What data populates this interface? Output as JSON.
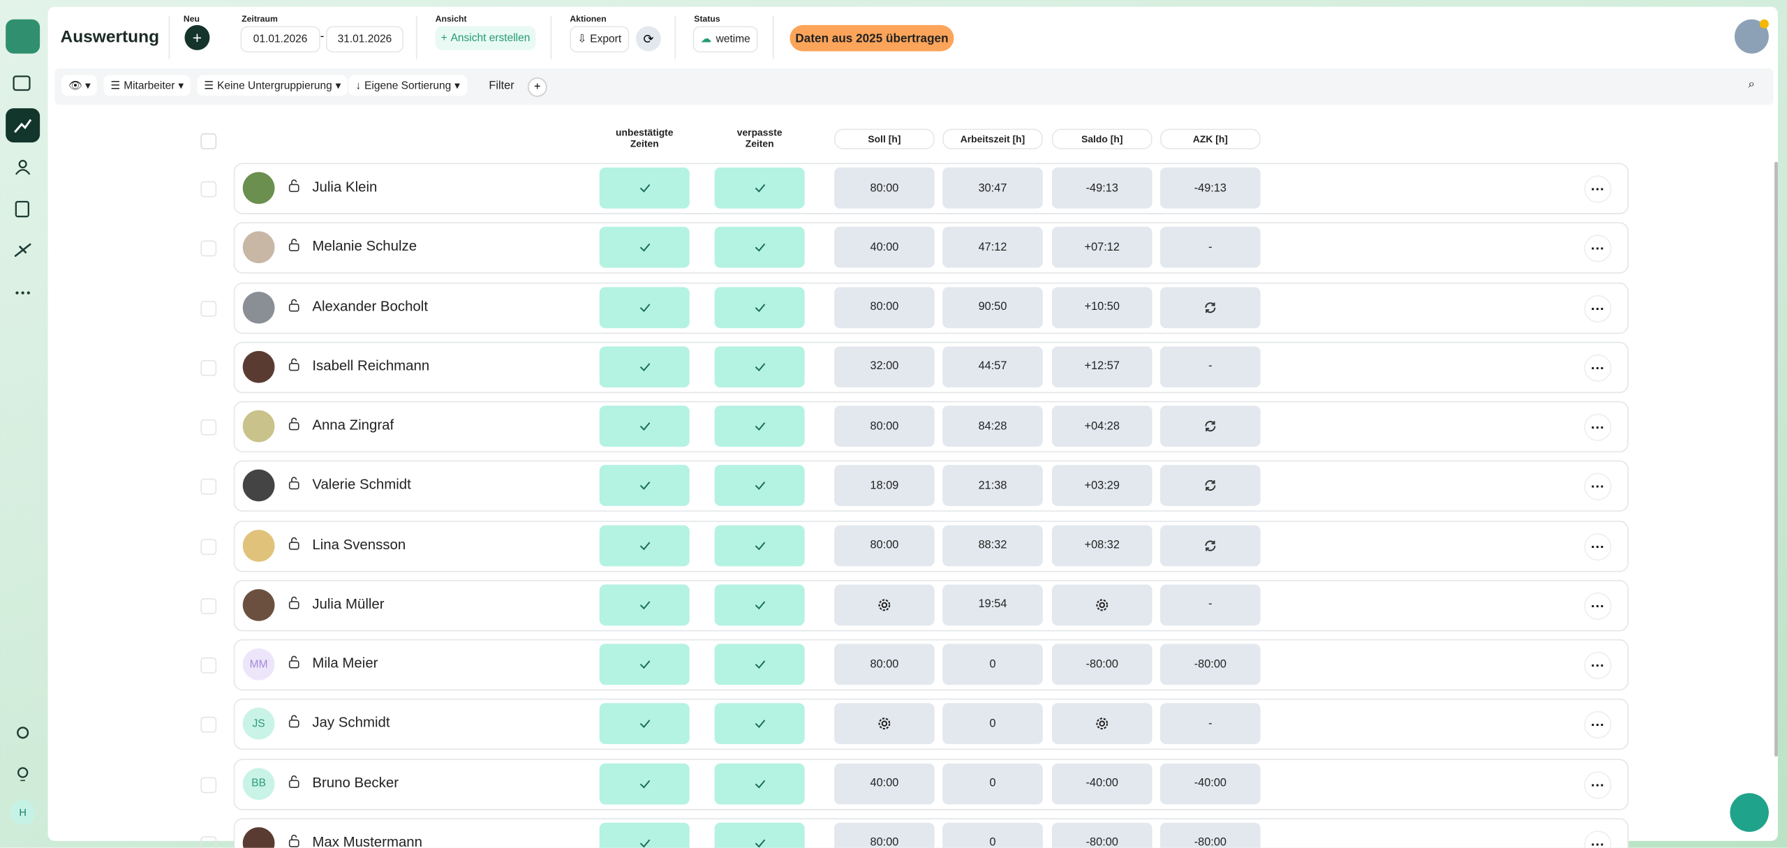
{
  "header": {
    "title": "Auswertung",
    "new_label": "Neu",
    "period_label": "Zeitraum",
    "date_from": "01.01.2026",
    "date_sep": "-",
    "date_to": "31.01.2026",
    "view_label": "Ansicht",
    "create_view": "Ansicht erstellen",
    "actions_label": "Aktionen",
    "export": "Export",
    "status_label": "Status",
    "status": "wetime",
    "transfer": "Daten aus 2025 übertragen"
  },
  "sidebar": {
    "user_initial": "H"
  },
  "toolbar": {
    "employees": "Mitarbeiter",
    "grouping": "Keine Untergruppierung",
    "sorting": "Eigene Sortierung",
    "filter": "Filter"
  },
  "table": {
    "columns": [
      [
        "unbestätigte",
        "Zeiten"
      ],
      [
        "verpasste",
        "Zeiten"
      ],
      "Soll [h]",
      "Arbeitszeit [h]",
      "Saldo [h]",
      "AZK [h]"
    ],
    "rows": [
      {
        "name": "Julia Klein",
        "initials": null,
        "soll": "80:00",
        "arbeitszeit": "30:47",
        "saldo": "-49:13",
        "azk": "-49:13"
      },
      {
        "name": "Melanie Schulze",
        "initials": null,
        "soll": "40:00",
        "arbeitszeit": "47:12",
        "saldo": "+07:12",
        "azk": "-"
      },
      {
        "name": "Alexander Bocholt",
        "initials": null,
        "soll": "80:00",
        "arbeitszeit": "90:50",
        "saldo": "+10:50",
        "azk": null
      },
      {
        "name": "Isabell Reichmann",
        "initials": null,
        "soll": "32:00",
        "arbeitszeit": "44:57",
        "saldo": "+12:57",
        "azk": "-"
      },
      {
        "name": "Anna Zingraf",
        "initials": null,
        "soll": "80:00",
        "arbeitszeit": "84:28",
        "saldo": "+04:28",
        "azk": null
      },
      {
        "name": "Valerie Schmidt",
        "initials": null,
        "soll": "18:09",
        "arbeitszeit": "21:38",
        "saldo": "+03:29",
        "azk": null
      },
      {
        "name": "Lina Svensson",
        "initials": null,
        "soll": "80:00",
        "arbeitszeit": "88:32",
        "saldo": "+08:32",
        "azk": null
      },
      {
        "name": "Julia Müller",
        "initials": null,
        "soll": null,
        "arbeitszeit": "19:54",
        "saldo": null,
        "azk": "-"
      },
      {
        "name": "Mila Meier",
        "initials": "MM",
        "soll": "80:00",
        "arbeitszeit": "0",
        "saldo": "-80:00",
        "azk": "-80:00"
      },
      {
        "name": "Jay Schmidt",
        "initials": "JS",
        "soll": null,
        "arbeitszeit": "0",
        "saldo": null,
        "azk": "-"
      },
      {
        "name": "Bruno Becker",
        "initials": "BB",
        "soll": "40:00",
        "arbeitszeit": "0",
        "saldo": "-40:00",
        "azk": "-40:00"
      },
      {
        "name": "Max Mustermann",
        "initials": null,
        "soll": "80:00",
        "arbeitszeit": "0",
        "saldo": "-80:00",
        "azk": "-80:00"
      }
    ]
  }
}
